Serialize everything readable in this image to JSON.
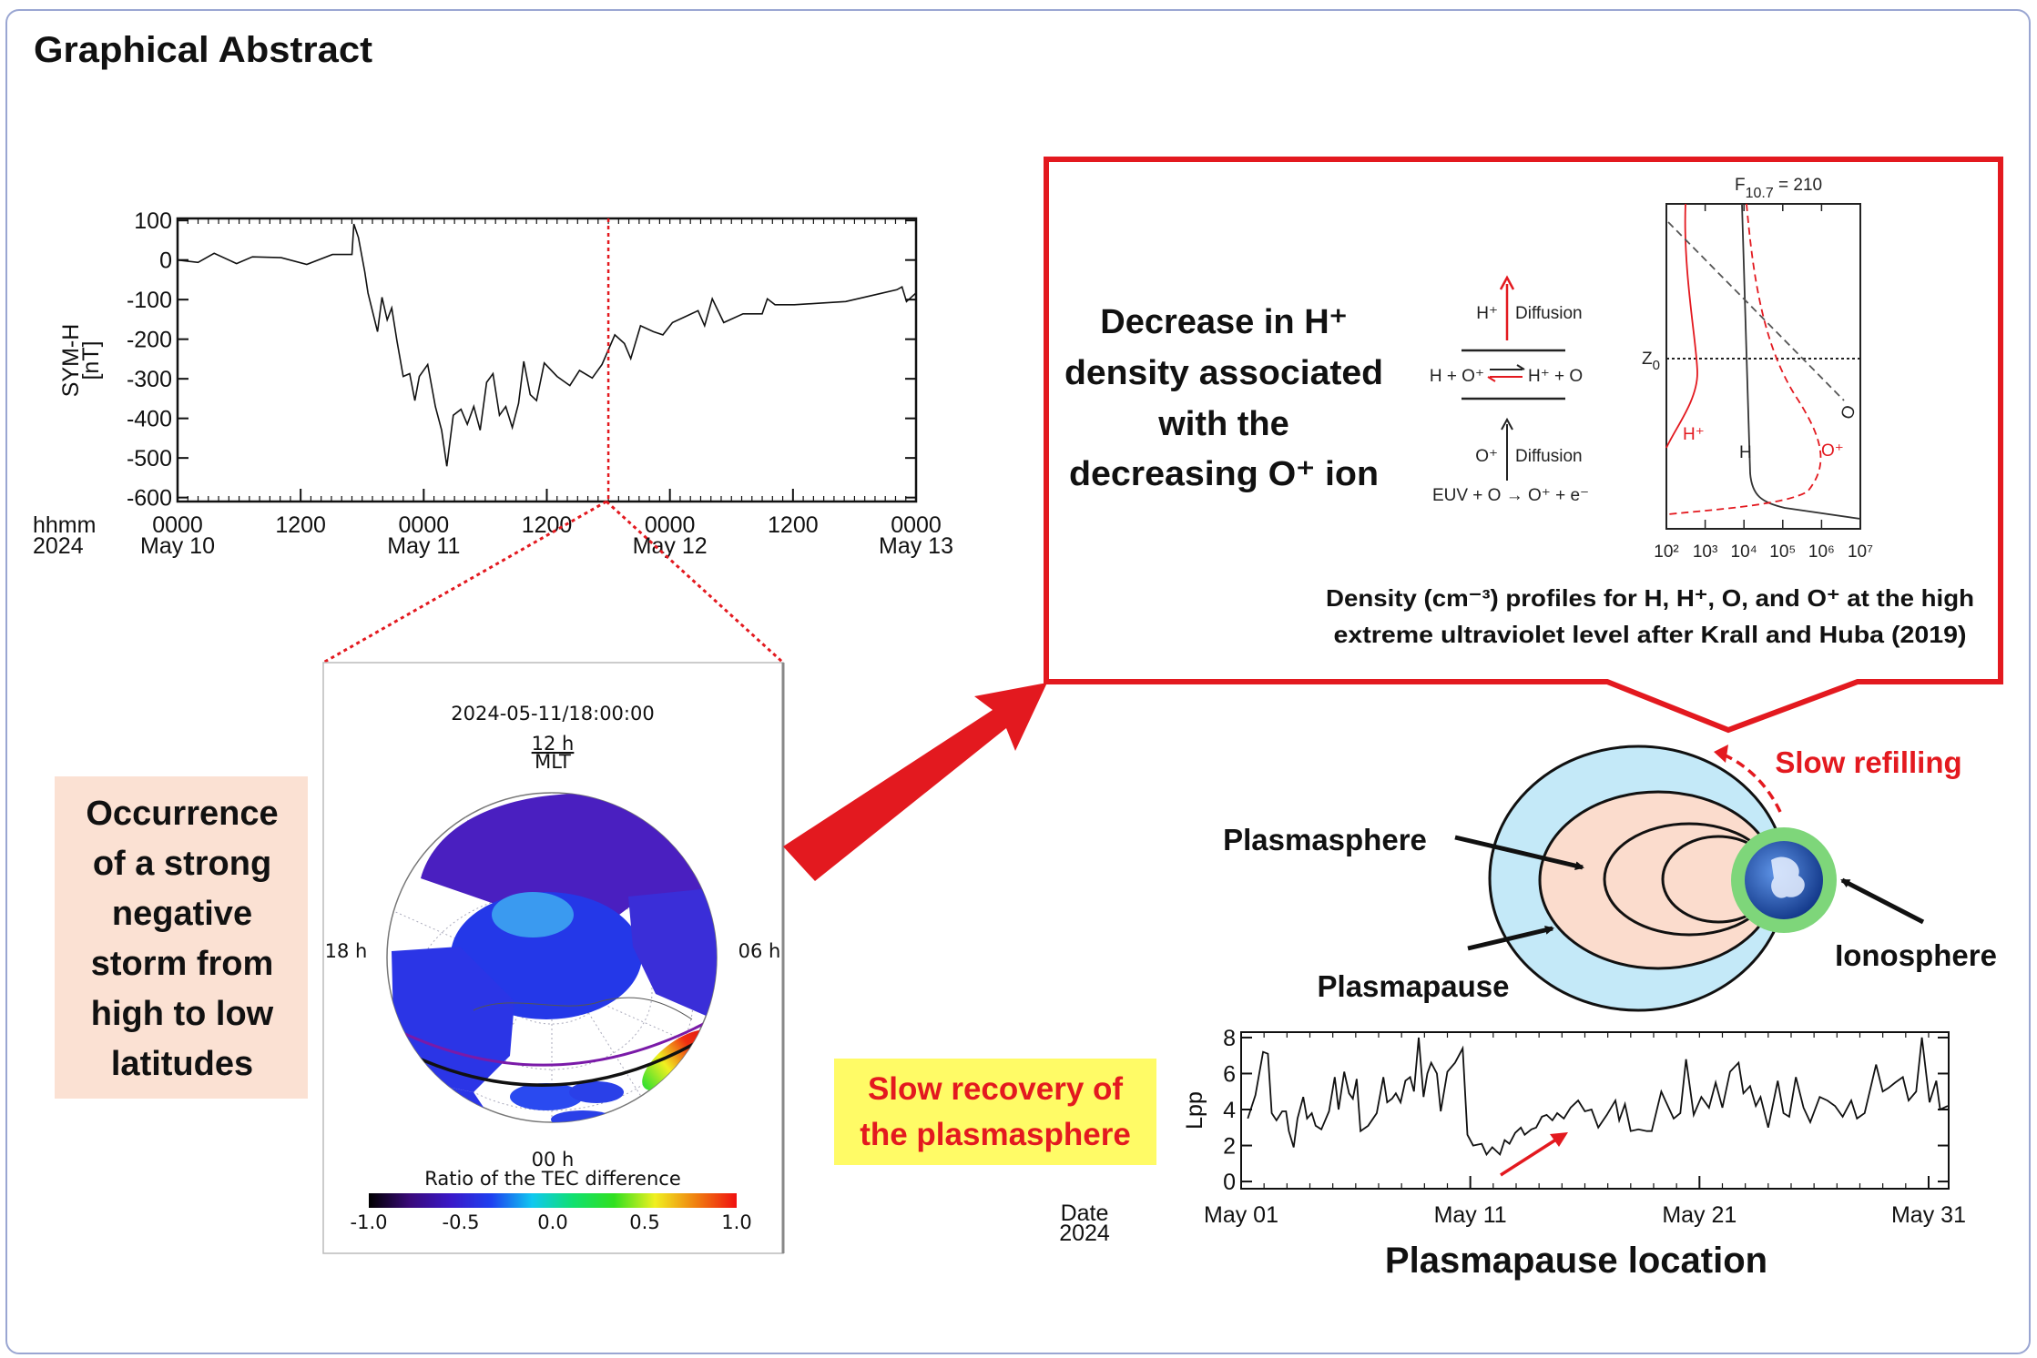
{
  "title": "Graphical Abstract",
  "colors": {
    "accent_red": "#e3191f",
    "frame": "#9aa6d2",
    "pink_box": "#fbe1d3",
    "yellow_box": "#fffb66",
    "plasmasphere_outer": "#c4e9f8",
    "plasmasphere_inner": "#fbdccd",
    "ionosphere": "#7ed67a",
    "earth": "#1d4fb0"
  },
  "left_box": {
    "lines": [
      "Occurrence",
      "of a strong",
      "negative",
      "storm from",
      "high to low",
      "latitudes"
    ]
  },
  "tec_map": {
    "timestamp": "2024-05-11/18:00:00",
    "top_label": "12 h",
    "mlt_label": "MLT",
    "left_label": "18 h",
    "right_label": "06 h",
    "bottom_label": "00 h",
    "colorbar_title": "Ratio of the TEC difference",
    "colorbar_ticks": [
      "-1.0",
      "-0.5",
      "0.0",
      "0.5",
      "1.0"
    ],
    "colorbar_range": [
      -1.0,
      1.0
    ],
    "colorscale": [
      "#000000",
      "#3a0a7a",
      "#3a18c8",
      "#1e40f0",
      "#10c8f0",
      "#10e070",
      "#30e020",
      "#f0f020",
      "#f08010",
      "#f01010"
    ]
  },
  "mechanism": {
    "heading_lines": [
      "Decrease in H⁺",
      "density associated",
      "with the",
      "decreasing O⁺ ion"
    ],
    "hplus_diffusion": {
      "species": "H⁺",
      "label": "Diffusion"
    },
    "exchange_reaction": {
      "left": "H + O⁺",
      "right": "H⁺ + O"
    },
    "oplus_diffusion": {
      "species": "O⁺",
      "label": "Diffusion"
    },
    "photoionization": "EUV + O → O⁺ + e⁻",
    "caption_lines": [
      "Density (cm⁻³) profiles for H, H⁺, O, and O⁺ at the high",
      "extreme ultraviolet level after Krall and Huba (2019)"
    ]
  },
  "density_panel": {
    "f_symbol": "F",
    "f_subscript": "10.7",
    "f_value": " = 210",
    "z_symbol": "Z",
    "z_subscript": "0",
    "x_ticks": [
      "10²",
      "10³",
      "10⁴",
      "10⁵",
      "10⁶",
      "10⁷"
    ],
    "x_scale": "log",
    "curve_labels": {
      "hplus": "H⁺",
      "h": "H",
      "oplus": "O⁺",
      "o": "O"
    }
  },
  "plasmasphere_diagram": {
    "refilling_label": "Slow refilling",
    "plasmasphere_label": "Plasmasphere",
    "plasmapause_label": "Plasmapause",
    "ionosphere_label": "Ionosphere"
  },
  "recovery_box": {
    "lines": [
      "Slow recovery of",
      "the plasmasphere"
    ]
  },
  "lpp_caption": "Plasmapause location",
  "chart_data": [
    {
      "id": "symh",
      "type": "line",
      "ylabel_lines": [
        "SYM-H",
        "[nT]"
      ],
      "xlabel_lines": [
        "hhmm",
        "2024"
      ],
      "xlim": [
        "2024-05-10T00:00",
        "2024-05-13T00:00"
      ],
      "ylim": [
        -610,
        105
      ],
      "yticks": [
        100,
        0,
        -100,
        -200,
        -300,
        -400,
        -500,
        -600
      ],
      "xticks": [
        {
          "t": "2024-05-10T00:00",
          "hhmm": "0000",
          "date": "May 10"
        },
        {
          "t": "2024-05-10T12:00",
          "hhmm": "1200",
          "date": ""
        },
        {
          "t": "2024-05-11T00:00",
          "hhmm": "0000",
          "date": "May 11"
        },
        {
          "t": "2024-05-11T12:00",
          "hhmm": "1200",
          "date": ""
        },
        {
          "t": "2024-05-12T00:00",
          "hhmm": "0000",
          "date": "May 12"
        },
        {
          "t": "2024-05-12T12:00",
          "hhmm": "1200",
          "date": ""
        },
        {
          "t": "2024-05-13T00:00",
          "hhmm": "0000",
          "date": "May 13"
        }
      ],
      "marker_time": "2024-05-11T18:00",
      "points": [
        [
          "2024-05-10T00:00",
          0
        ],
        [
          "2024-05-10T02:00",
          -6
        ],
        [
          "2024-05-10T03:34",
          17
        ],
        [
          "2024-05-10T05:45",
          -9
        ],
        [
          "2024-05-10T07:18",
          8
        ],
        [
          "2024-05-10T10:06",
          6
        ],
        [
          "2024-05-10T12:36",
          -11
        ],
        [
          "2024-05-10T15:06",
          14
        ],
        [
          "2024-05-10T17:00",
          14
        ],
        [
          "2024-05-10T17:11",
          91
        ],
        [
          "2024-05-10T17:38",
          57
        ],
        [
          "2024-05-10T18:15",
          -30
        ],
        [
          "2024-05-10T18:34",
          -83
        ],
        [
          "2024-05-10T19:30",
          -181
        ],
        [
          "2024-05-10T19:56",
          -94
        ],
        [
          "2024-05-10T20:26",
          -151
        ],
        [
          "2024-05-10T20:53",
          -121
        ],
        [
          "2024-05-10T21:23",
          -204
        ],
        [
          "2024-05-10T22:00",
          -294
        ],
        [
          "2024-05-10T22:38",
          -287
        ],
        [
          "2024-05-10T23:08",
          -355
        ],
        [
          "2024-05-10T23:34",
          -294
        ],
        [
          "2024-05-11T00:23",
          -264
        ],
        [
          "2024-05-11T01:08",
          -370
        ],
        [
          "2024-05-11T01:45",
          -430
        ],
        [
          "2024-05-11T02:15",
          -521
        ],
        [
          "2024-05-11T02:53",
          -392
        ],
        [
          "2024-05-11T03:38",
          -377
        ],
        [
          "2024-05-11T04:15",
          -415
        ],
        [
          "2024-05-11T04:53",
          -370
        ],
        [
          "2024-05-11T05:30",
          -430
        ],
        [
          "2024-05-11T06:08",
          -309
        ],
        [
          "2024-05-11T06:45",
          -287
        ],
        [
          "2024-05-11T07:23",
          -392
        ],
        [
          "2024-05-11T08:00",
          -370
        ],
        [
          "2024-05-11T08:38",
          -423
        ],
        [
          "2024-05-11T09:15",
          -362
        ],
        [
          "2024-05-11T09:45",
          -256
        ],
        [
          "2024-05-11T10:23",
          -340
        ],
        [
          "2024-05-11T11:00",
          -355
        ],
        [
          "2024-05-11T11:45",
          -260
        ],
        [
          "2024-05-11T13:00",
          -294
        ],
        [
          "2024-05-11T14:15",
          -317
        ],
        [
          "2024-05-11T15:11",
          -279
        ],
        [
          "2024-05-11T16:26",
          -298
        ],
        [
          "2024-05-11T17:23",
          -264
        ],
        [
          "2024-05-11T18:08",
          -219
        ],
        [
          "2024-05-11T18:38",
          -189
        ],
        [
          "2024-05-11T19:34",
          -211
        ],
        [
          "2024-05-11T20:11",
          -249
        ],
        [
          "2024-05-11T21:08",
          -166
        ],
        [
          "2024-05-11T22:23",
          -181
        ],
        [
          "2024-05-11T23:19",
          -189
        ],
        [
          "2024-05-12T00:15",
          -158
        ],
        [
          "2024-05-12T01:30",
          -143
        ],
        [
          "2024-05-12T02:45",
          -128
        ],
        [
          "2024-05-12T03:23",
          -166
        ],
        [
          "2024-05-12T04:08",
          -98
        ],
        [
          "2024-05-12T05:15",
          -158
        ],
        [
          "2024-05-12T07:08",
          -136
        ],
        [
          "2024-05-12T09:00",
          -136
        ],
        [
          "2024-05-12T09:30",
          -98
        ],
        [
          "2024-05-12T10:15",
          -113
        ],
        [
          "2024-05-12T12:08",
          -113
        ],
        [
          "2024-05-12T14:38",
          -109
        ],
        [
          "2024-05-12T17:08",
          -105
        ],
        [
          "2024-05-12T19:38",
          -90
        ],
        [
          "2024-05-12T22:08",
          -75
        ],
        [
          "2024-05-12T22:38",
          -68
        ],
        [
          "2024-05-12T23:04",
          -105
        ],
        [
          "2024-05-13T00:00",
          -83
        ]
      ]
    },
    {
      "id": "lpp",
      "type": "line",
      "ylabel": "Lpp",
      "xlabel_lines": [
        "Date",
        "2024"
      ],
      "xlim": [
        "2024-05-01T00:00",
        "2024-05-31T21:00"
      ],
      "ylim": [
        -0.4,
        8.3
      ],
      "yticks": [
        0,
        2,
        4,
        6,
        8
      ],
      "xticks": [
        {
          "t": "2024-05-01T00:00",
          "label": "May 01"
        },
        {
          "t": "2024-05-11T00:00",
          "label": "May 11"
        },
        {
          "t": "2024-05-21T00:00",
          "label": "May 21"
        },
        {
          "t": "2024-05-31T00:00",
          "label": "May 31"
        }
      ],
      "points": [
        [
          "2024-05-01T07:00",
          3.5
        ],
        [
          "2024-05-01T15:00",
          4.8
        ],
        [
          "2024-05-01T23:00",
          7.2
        ],
        [
          "2024-05-02T04:00",
          7.1
        ],
        [
          "2024-05-02T08:00",
          3.8
        ],
        [
          "2024-05-02T13:00",
          3.4
        ],
        [
          "2024-05-02T19:00",
          3.9
        ],
        [
          "2024-05-02T23:00",
          3.9
        ],
        [
          "2024-05-03T02:00",
          2.8
        ],
        [
          "2024-05-03T07:00",
          1.9
        ],
        [
          "2024-05-03T11:00",
          3.5
        ],
        [
          "2024-05-03T17:00",
          4.7
        ],
        [
          "2024-05-03T21:00",
          3.5
        ],
        [
          "2024-05-04T02:00",
          3.8
        ],
        [
          "2024-05-04T06:00",
          3.1
        ],
        [
          "2024-05-04T12:00",
          2.9
        ],
        [
          "2024-05-04T20:00",
          3.9
        ],
        [
          "2024-05-05T02:00",
          5.8
        ],
        [
          "2024-05-05T06:00",
          4.0
        ],
        [
          "2024-05-05T12:00",
          6.1
        ],
        [
          "2024-05-05T17:00",
          4.9
        ],
        [
          "2024-05-05T21:00",
          4.6
        ],
        [
          "2024-05-06T01:00",
          5.7
        ],
        [
          "2024-05-06T05:00",
          2.8
        ],
        [
          "2024-05-06T13:00",
          3.1
        ],
        [
          "2024-05-06T22:00",
          3.8
        ],
        [
          "2024-05-07T05:00",
          5.8
        ],
        [
          "2024-05-07T09:00",
          4.4
        ],
        [
          "2024-05-07T14:00",
          4.6
        ],
        [
          "2024-05-07T18:00",
          4.9
        ],
        [
          "2024-05-07T23:00",
          4.4
        ],
        [
          "2024-05-08T04:00",
          5.6
        ],
        [
          "2024-05-08T09:00",
          5.8
        ],
        [
          "2024-05-08T13:00",
          5.0
        ],
        [
          "2024-05-08T18:00",
          8.0
        ],
        [
          "2024-05-08T23:00",
          4.7
        ],
        [
          "2024-05-09T03:00",
          6.0
        ],
        [
          "2024-05-09T07:00",
          6.6
        ],
        [
          "2024-05-09T13:00",
          6.0
        ],
        [
          "2024-05-09T17:00",
          3.9
        ],
        [
          "2024-05-10T00:00",
          6.1
        ],
        [
          "2024-05-10T08:00",
          6.6
        ],
        [
          "2024-05-10T16:00",
          7.4
        ],
        [
          "2024-05-10T21:00",
          2.6
        ],
        [
          "2024-05-11T03:00",
          2.0
        ],
        [
          "2024-05-11T12:00",
          2.1
        ],
        [
          "2024-05-11T17:00",
          1.5
        ],
        [
          "2024-05-11T23:00",
          1.9
        ],
        [
          "2024-05-12T07:00",
          1.5
        ],
        [
          "2024-05-12T12:00",
          2.3
        ],
        [
          "2024-05-12T17:00",
          2.1
        ],
        [
          "2024-05-12T23:00",
          2.7
        ],
        [
          "2024-05-13T05:00",
          3.0
        ],
        [
          "2024-05-13T09:00",
          2.6
        ],
        [
          "2024-05-13T16:00",
          2.9
        ],
        [
          "2024-05-13T21:00",
          3.0
        ],
        [
          "2024-05-14T03:00",
          3.6
        ],
        [
          "2024-05-14T08:00",
          3.7
        ],
        [
          "2024-05-14T14:00",
          3.4
        ],
        [
          "2024-05-14T19:00",
          3.8
        ],
        [
          "2024-05-15T02:00",
          3.5
        ],
        [
          "2024-05-15T09:00",
          4.1
        ],
        [
          "2024-05-15T17:00",
          4.5
        ],
        [
          "2024-05-16T00:00",
          3.9
        ],
        [
          "2024-05-16T07:00",
          4.0
        ],
        [
          "2024-05-16T14:00",
          3.0
        ],
        [
          "2024-05-16T23:00",
          3.7
        ],
        [
          "2024-05-17T08:00",
          4.5
        ],
        [
          "2024-05-17T12:00",
          3.4
        ],
        [
          "2024-05-17T18:00",
          4.3
        ],
        [
          "2024-05-18T00:00",
          2.8
        ],
        [
          "2024-05-18T08:00",
          2.9
        ],
        [
          "2024-05-18T17:00",
          2.8
        ],
        [
          "2024-05-18T22:00",
          2.8
        ],
        [
          "2024-05-19T08:00",
          5.0
        ],
        [
          "2024-05-19T14:00",
          4.3
        ],
        [
          "2024-05-19T21:00",
          3.5
        ],
        [
          "2024-05-20T04:00",
          3.8
        ],
        [
          "2024-05-20T10:00",
          6.8
        ],
        [
          "2024-05-20T18:00",
          3.7
        ],
        [
          "2024-05-21T02:00",
          4.7
        ],
        [
          "2024-05-21T10:00",
          4.1
        ],
        [
          "2024-05-21T17:00",
          5.5
        ],
        [
          "2024-05-22T00:00",
          4.1
        ],
        [
          "2024-05-22T08:00",
          6.1
        ],
        [
          "2024-05-22T17:00",
          6.6
        ],
        [
          "2024-05-22T22:00",
          4.9
        ],
        [
          "2024-05-23T05:00",
          5.3
        ],
        [
          "2024-05-23T11:00",
          4.2
        ],
        [
          "2024-05-23T16:00",
          4.7
        ],
        [
          "2024-05-24T00:00",
          3.0
        ],
        [
          "2024-05-24T10:00",
          5.6
        ],
        [
          "2024-05-24T16:00",
          3.8
        ],
        [
          "2024-05-24T22:00",
          3.6
        ],
        [
          "2024-05-25T05:00",
          5.8
        ],
        [
          "2024-05-25T13:00",
          4.1
        ],
        [
          "2024-05-25T20:00",
          3.3
        ],
        [
          "2024-05-26T06:00",
          4.7
        ],
        [
          "2024-05-26T14:00",
          4.5
        ],
        [
          "2024-05-26T22:00",
          4.2
        ],
        [
          "2024-05-27T06:00",
          3.6
        ],
        [
          "2024-05-27T15:00",
          4.5
        ],
        [
          "2024-05-27T21:00",
          3.5
        ],
        [
          "2024-05-28T05:00",
          3.8
        ],
        [
          "2024-05-28T17:00",
          6.5
        ],
        [
          "2024-05-29T00:00",
          5.0
        ],
        [
          "2024-05-29T06:00",
          5.2
        ],
        [
          "2024-05-29T13:00",
          5.5
        ],
        [
          "2024-05-29T21:00",
          5.8
        ],
        [
          "2024-05-30T03:00",
          4.5
        ],
        [
          "2024-05-30T11:00",
          5.0
        ],
        [
          "2024-05-30T17:00",
          8.0
        ],
        [
          "2024-05-31T01:00",
          4.4
        ],
        [
          "2024-05-31T08:00",
          5.6
        ],
        [
          "2024-05-31T12:00",
          4.0
        ],
        [
          "2024-05-31T20:00",
          4.2
        ]
      ]
    }
  ]
}
